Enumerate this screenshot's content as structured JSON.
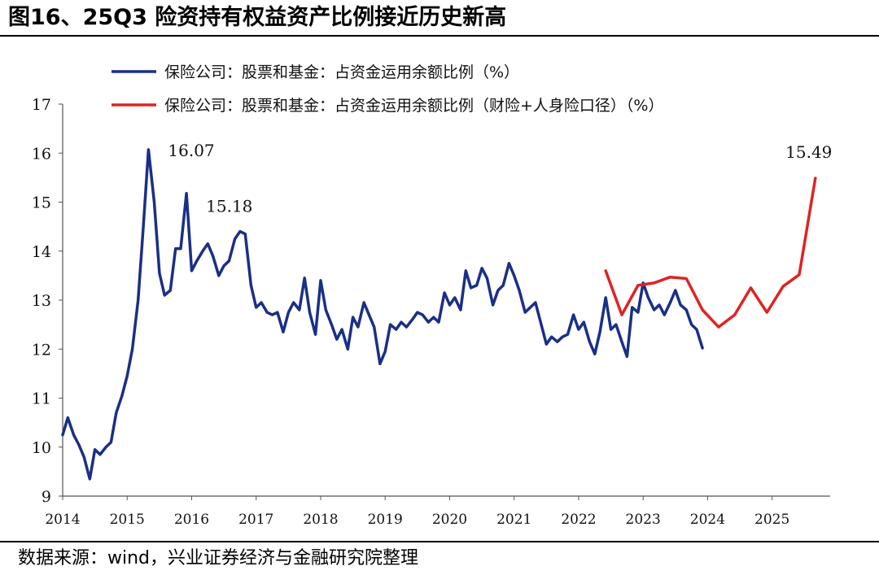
{
  "header": {
    "title": "图16、25Q3 险资持有权益资产比例接近历史新高"
  },
  "footer": {
    "source": "数据来源：wind，兴业证券经济与金融研究院整理"
  },
  "chart_data": {
    "type": "line",
    "title": "",
    "xlabel": "",
    "ylabel": "",
    "ylim": [
      9,
      17
    ],
    "xlim": [
      2014.0,
      2025.9
    ],
    "y_ticks": [
      "9",
      "10",
      "11",
      "12",
      "13",
      "14",
      "15",
      "16",
      "17"
    ],
    "x_ticks": [
      "2014",
      "2015",
      "2016",
      "2017",
      "2018",
      "2019",
      "2020",
      "2021",
      "2022",
      "2023",
      "2024",
      "2025"
    ],
    "grid": false,
    "legend_position": "top",
    "series": [
      {
        "name": "保险公司：股票和基金：占资金运用余额比例（%）",
        "color": "#1a2f86",
        "x": [
          2014.0,
          2014.08,
          2014.17,
          2014.25,
          2014.33,
          2014.42,
          2014.5,
          2014.58,
          2014.67,
          2014.75,
          2014.83,
          2014.92,
          2015.0,
          2015.08,
          2015.17,
          2015.25,
          2015.33,
          2015.42,
          2015.5,
          2015.58,
          2015.67,
          2015.75,
          2015.83,
          2015.92,
          2016.0,
          2016.08,
          2016.17,
          2016.25,
          2016.33,
          2016.42,
          2016.5,
          2016.58,
          2016.67,
          2016.75,
          2016.83,
          2016.92,
          2017.0,
          2017.08,
          2017.17,
          2017.25,
          2017.33,
          2017.42,
          2017.5,
          2017.58,
          2017.67,
          2017.75,
          2017.83,
          2017.92,
          2018.0,
          2018.08,
          2018.17,
          2018.25,
          2018.33,
          2018.42,
          2018.5,
          2018.58,
          2018.67,
          2018.75,
          2018.83,
          2018.92,
          2019.0,
          2019.08,
          2019.17,
          2019.25,
          2019.33,
          2019.42,
          2019.5,
          2019.58,
          2019.67,
          2019.75,
          2019.83,
          2019.92,
          2020.0,
          2020.08,
          2020.17,
          2020.25,
          2020.33,
          2020.42,
          2020.5,
          2020.58,
          2020.67,
          2020.75,
          2020.83,
          2020.92,
          2021.0,
          2021.08,
          2021.17,
          2021.25,
          2021.33,
          2021.42,
          2021.5,
          2021.58,
          2021.67,
          2021.75,
          2021.83,
          2021.92,
          2022.0,
          2022.08,
          2022.17,
          2022.25,
          2022.33,
          2022.42,
          2022.5,
          2022.58,
          2022.67,
          2022.75,
          2022.83,
          2022.92,
          2023.0,
          2023.08,
          2023.17,
          2023.25,
          2023.33,
          2023.42,
          2023.5,
          2023.58,
          2023.67,
          2023.75,
          2023.83,
          2023.92
        ],
        "y": [
          10.25,
          10.6,
          10.25,
          10.05,
          9.8,
          9.35,
          9.95,
          9.85,
          10.0,
          10.1,
          10.7,
          11.05,
          11.45,
          12.0,
          13.0,
          14.5,
          16.07,
          15.0,
          13.55,
          13.1,
          13.2,
          14.05,
          14.05,
          15.18,
          13.6,
          13.8,
          14.0,
          14.15,
          13.9,
          13.5,
          13.7,
          13.8,
          14.25,
          14.4,
          14.35,
          13.3,
          12.85,
          12.95,
          12.75,
          12.7,
          12.75,
          12.35,
          12.75,
          12.95,
          12.8,
          13.45,
          12.75,
          12.3,
          13.4,
          12.8,
          12.5,
          12.2,
          12.4,
          12.0,
          12.65,
          12.45,
          12.95,
          12.7,
          12.45,
          11.7,
          11.95,
          12.5,
          12.4,
          12.55,
          12.45,
          12.6,
          12.75,
          12.7,
          12.55,
          12.65,
          12.55,
          13.15,
          12.9,
          13.05,
          12.8,
          13.6,
          13.25,
          13.3,
          13.65,
          13.45,
          12.9,
          13.2,
          13.3,
          13.75,
          13.5,
          13.2,
          12.75,
          12.85,
          12.95,
          12.5,
          12.1,
          12.25,
          12.15,
          12.25,
          12.3,
          12.7,
          12.4,
          12.55,
          12.15,
          11.9,
          12.35,
          13.05,
          12.4,
          12.5,
          12.15,
          11.85,
          12.85,
          12.75,
          13.35,
          13.05,
          12.8,
          12.9,
          12.7,
          12.95,
          13.2,
          12.9,
          12.8,
          12.5,
          12.4,
          12.02
        ]
      },
      {
        "name": "保险公司：股票和基金：占资金运用余额比例（财险+人身险口径）（%）",
        "color": "#e02222",
        "x": [
          2022.42,
          2022.67,
          2022.92,
          2023.17,
          2023.42,
          2023.67,
          2023.92,
          2024.17,
          2024.42,
          2024.67,
          2024.92,
          2025.17,
          2025.42,
          2025.67
        ],
        "y": [
          13.6,
          12.7,
          13.3,
          13.35,
          13.47,
          13.44,
          12.8,
          12.45,
          12.7,
          13.25,
          12.75,
          13.28,
          13.52,
          15.49
        ]
      }
    ],
    "annotations": [
      {
        "text": "16.07",
        "x": 2015.33,
        "y": 16.07
      },
      {
        "text": "15.18",
        "x": 2015.92,
        "y": 15.18
      },
      {
        "text": "15.49",
        "x": 2025.67,
        "y": 15.49
      }
    ]
  }
}
